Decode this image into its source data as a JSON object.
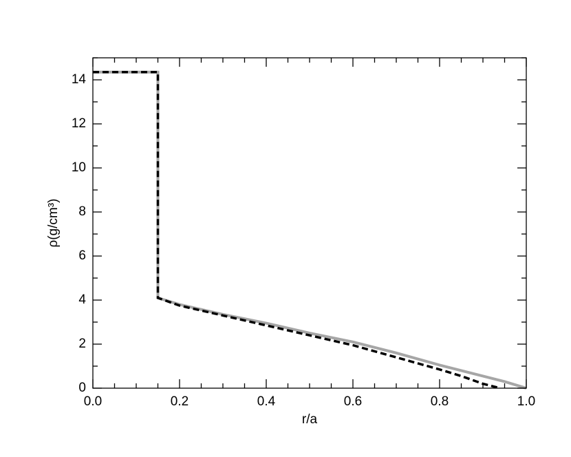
{
  "chart_data": {
    "type": "line",
    "xlabel": "r/a",
    "ylabel": "ρ(g/cm³)",
    "xlim": [
      0,
      1
    ],
    "ylim": [
      0,
      15
    ],
    "xticks": [
      {
        "value": 0,
        "label": "0.0"
      },
      {
        "value": 0.2,
        "label": "0.2"
      },
      {
        "value": 0.4,
        "label": "0.4"
      },
      {
        "value": 0.6,
        "label": "0.6"
      },
      {
        "value": 0.8,
        "label": "0.8"
      },
      {
        "value": 1,
        "label": "1.0"
      }
    ],
    "yticks": [
      0,
      2,
      4,
      6,
      8,
      10,
      12,
      14
    ],
    "xminorticks": [
      0.05,
      0.1,
      0.15,
      0.25,
      0.3,
      0.35,
      0.45,
      0.5,
      0.55,
      0.65,
      0.7,
      0.75,
      0.85,
      0.9,
      0.95
    ],
    "yminorticks": [
      1,
      3,
      5,
      7,
      9,
      11,
      13,
      15
    ],
    "series": [
      {
        "color": "#a6a6a6",
        "dash": false,
        "x": [
          0,
          0.15,
          0.15,
          0.2,
          0.3,
          0.4,
          0.5,
          0.6,
          0.7,
          0.8,
          0.9,
          0.95,
          1.0
        ],
        "values": [
          14.35,
          14.35,
          4.1,
          3.8,
          3.35,
          2.95,
          2.5,
          2.1,
          1.6,
          1.05,
          0.55,
          0.3,
          0
        ]
      },
      {
        "color": "#000000",
        "dash": true,
        "x": [
          0,
          0.15,
          0.15,
          0.2,
          0.3,
          0.4,
          0.5,
          0.6,
          0.7,
          0.8,
          0.85,
          0.9,
          0.93,
          0.94
        ],
        "values": [
          14.35,
          14.35,
          4.1,
          3.75,
          3.3,
          2.85,
          2.4,
          1.95,
          1.4,
          0.85,
          0.55,
          0.2,
          0.05,
          0
        ]
      }
    ]
  }
}
